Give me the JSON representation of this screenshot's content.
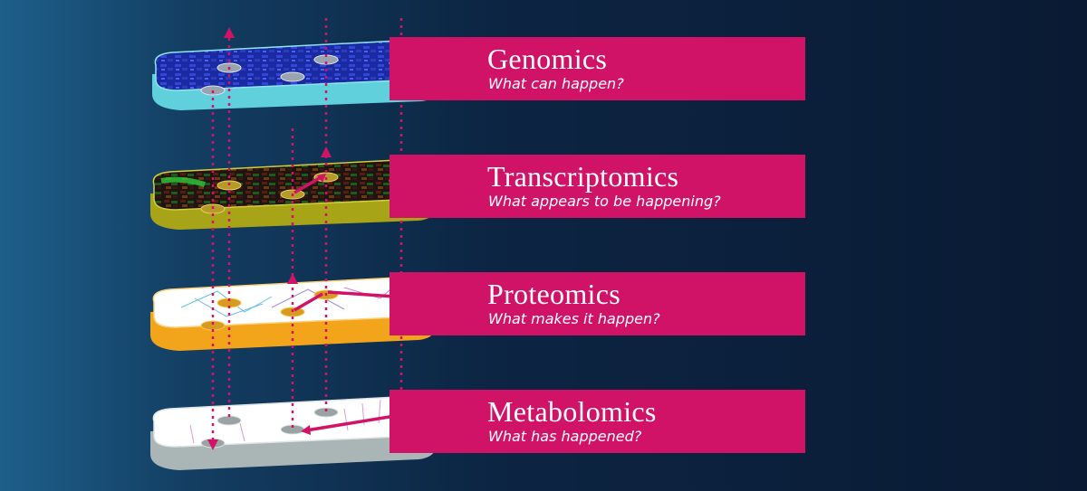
{
  "layers": [
    {
      "title": "Genomics",
      "question": "What can happen?",
      "side_color": "#5fd0dc",
      "top_color": "#1b2a9c"
    },
    {
      "title": "Transcriptomics",
      "question": "What appears to be happening?",
      "side_color": "#a8a418",
      "top_color": "#2a1a12"
    },
    {
      "title": "Proteomics",
      "question": "What makes it happen?",
      "side_color": "#f2a51a",
      "top_color": "#ffffff"
    },
    {
      "title": "Metabolomics",
      "question": "What has happened?",
      "side_color": "#aab5b5",
      "top_color": "#ffffff"
    }
  ],
  "colors": {
    "banner": "#d11368",
    "arrow": "#d11368",
    "background_dark": "#0a1a33",
    "background_light": "#1d5f8a"
  }
}
